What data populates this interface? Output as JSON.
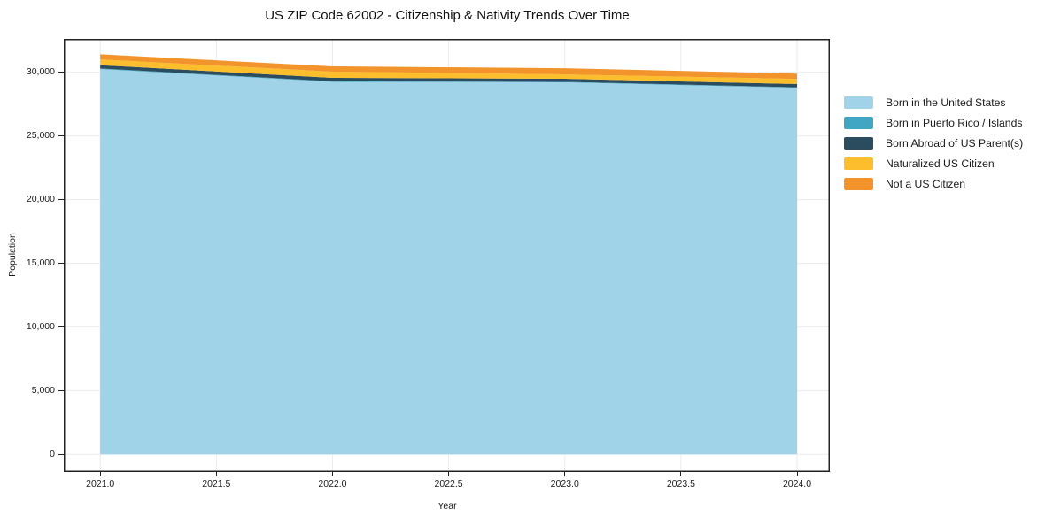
{
  "title": "US ZIP Code 62002 - Citizenship & Nativity Trends Over Time",
  "axes": {
    "x_label": "Year",
    "y_label": "Population",
    "x_ticks": [
      "2021.0",
      "2021.5",
      "2022.0",
      "2022.5",
      "2023.0",
      "2023.5",
      "2024.0"
    ],
    "y_ticks": [
      "0",
      "5,000",
      "10,000",
      "15,000",
      "20,000",
      "25,000",
      "30,000"
    ]
  },
  "legend": {
    "items": [
      {
        "label": "Born in the United States",
        "color": "#a0d2e8"
      },
      {
        "label": "Born in Puerto Rico / Islands",
        "color": "#41a6c4"
      },
      {
        "label": "Born Abroad of US Parent(s)",
        "color": "#2b4c5f"
      },
      {
        "label": "Naturalized US Citizen",
        "color": "#fcbe2d"
      },
      {
        "label": "Not a US Citizen",
        "color": "#f2932b"
      }
    ]
  },
  "chart_data": {
    "type": "area",
    "stacked": true,
    "title": "US ZIP Code 62002 - Citizenship & Nativity Trends Over Time",
    "xlabel": "Year",
    "ylabel": "Population",
    "x": [
      2021,
      2022,
      2023,
      2024
    ],
    "series": [
      {
        "name": "Born in the United States",
        "color": "#a0d2e8",
        "values": [
          30250,
          29250,
          29210,
          28780
        ]
      },
      {
        "name": "Born in Puerto Rico / Islands",
        "color": "#41a6c4",
        "values": [
          50,
          45,
          40,
          45
        ]
      },
      {
        "name": "Born Abroad of US Parent(s)",
        "color": "#2b4c5f",
        "values": [
          260,
          270,
          240,
          255
        ]
      },
      {
        "name": "Naturalized US Citizen",
        "color": "#fcbe2d",
        "values": [
          455,
          485,
          345,
          395
        ]
      },
      {
        "name": "Not a US Citizen",
        "color": "#f2932b",
        "values": [
          395,
          415,
          485,
          415
        ]
      }
    ],
    "totals": [
      31410,
      30465,
      30320,
      29890
    ],
    "x_tick_values": [
      2021,
      2021.5,
      2022,
      2022.5,
      2023,
      2023.5,
      2024
    ],
    "y_tick_values": [
      0,
      5000,
      10000,
      15000,
      20000,
      25000,
      30000
    ],
    "xlim": [
      2020.843,
      2024.141
    ],
    "ylim": [
      -1370,
      32620
    ],
    "grid": true,
    "grid_color": "#ebebeb",
    "frame_color": "#222222",
    "legend_position": "right-outside"
  }
}
